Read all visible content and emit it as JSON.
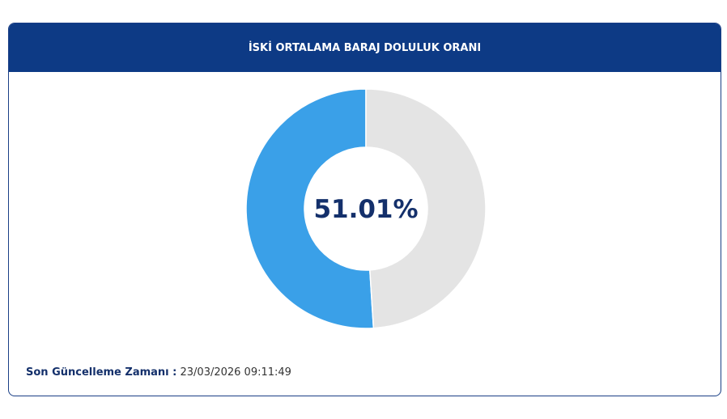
{
  "chart_data": {
    "type": "donut",
    "title": "İSKİ ORTALAMA BARAJ DOLULUK ORANI",
    "values": [
      51.01,
      48.99
    ],
    "value_labels": [
      "51.01%",
      null
    ],
    "colors": [
      "#3aa0e8",
      "#e4e4e4"
    ]
  },
  "footer": {
    "label": "Son Güncelleme Zamanı :",
    "value": "23/03/2026 09:11:49"
  }
}
